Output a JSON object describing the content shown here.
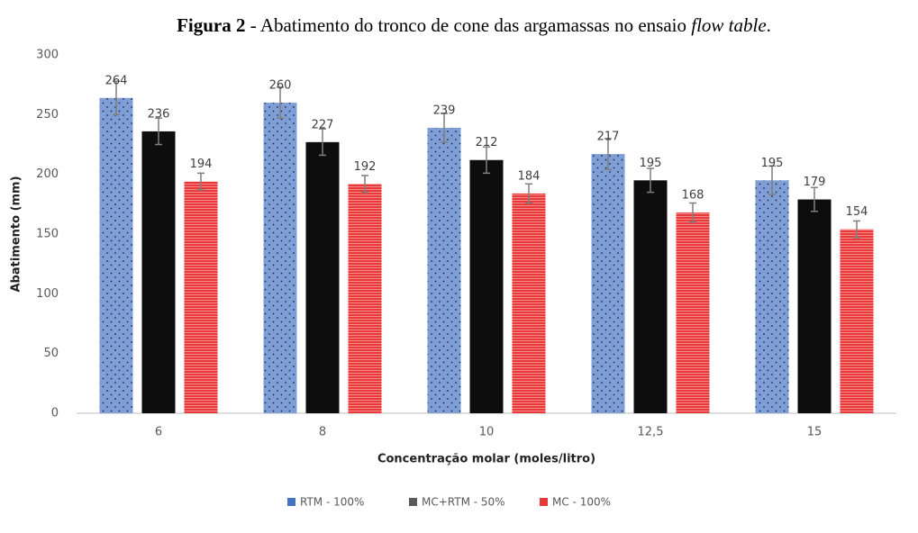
{
  "chart_data": {
    "type": "bar",
    "title": [
      "Figura 2",
      " - Abatimento do tronco de cone das argamassas no ensaio ",
      "flow table",
      "."
    ],
    "x_label": "Concentração molar (moles/litro)",
    "y_label": "Abatimento (mm)",
    "categories": [
      "6",
      "8",
      "10",
      "12,5",
      "15"
    ],
    "series": [
      {
        "name": "RTM - 100%",
        "color": "#4472c4",
        "values": [
          264,
          260,
          239,
          217,
          195
        ],
        "errors": [
          14,
          13,
          12,
          13,
          12
        ]
      },
      {
        "name": "MC+RTM - 50%",
        "color": "#595959",
        "values": [
          236,
          227,
          212,
          195,
          179
        ],
        "errors": [
          11,
          11,
          11,
          10,
          10
        ]
      },
      {
        "name": "MC - 100%",
        "color": "#e83a3a",
        "values": [
          194,
          192,
          184,
          168,
          154
        ],
        "errors": [
          7,
          7,
          8,
          8,
          7
        ]
      }
    ],
    "ylim": [
      0,
      300
    ],
    "yticks": [
      0,
      50,
      100,
      150,
      200,
      250,
      300
    ],
    "grid": false,
    "legend": "bottom"
  }
}
